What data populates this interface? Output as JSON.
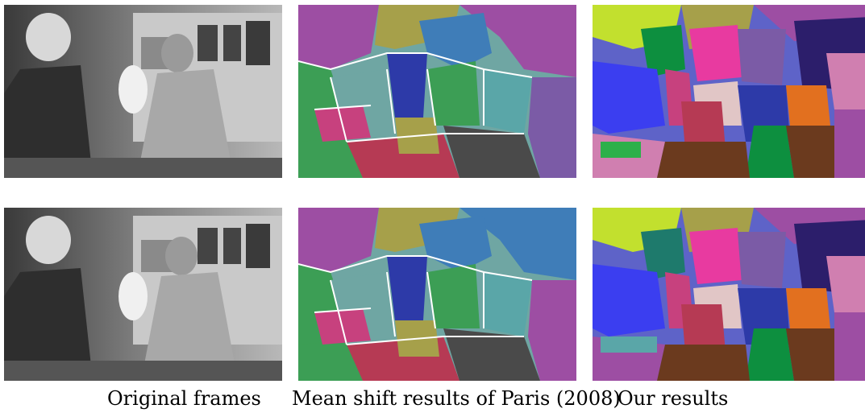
{
  "captions": {
    "original": "Original frames",
    "mean_shift": "Mean shift results of Paris (2008)",
    "ours": "Our results"
  },
  "palette": {
    "background": "#ffffff",
    "segment_colors": [
      "#9d4ea3",
      "#a6a04a",
      "#3f7db8",
      "#3c9e55",
      "#6fa6a3",
      "#2d3aa8",
      "#b63a54",
      "#c7417e",
      "#d07fb0",
      "#5aa6a8",
      "#7b5ba6",
      "#e2701f",
      "#0d8f3f",
      "#1e7a6c",
      "#6b3a1e",
      "#c2e02e",
      "#2c1e6b",
      "#5e63c8",
      "#3b3ef0",
      "#e83aa0",
      "#e1c6c6"
    ]
  }
}
